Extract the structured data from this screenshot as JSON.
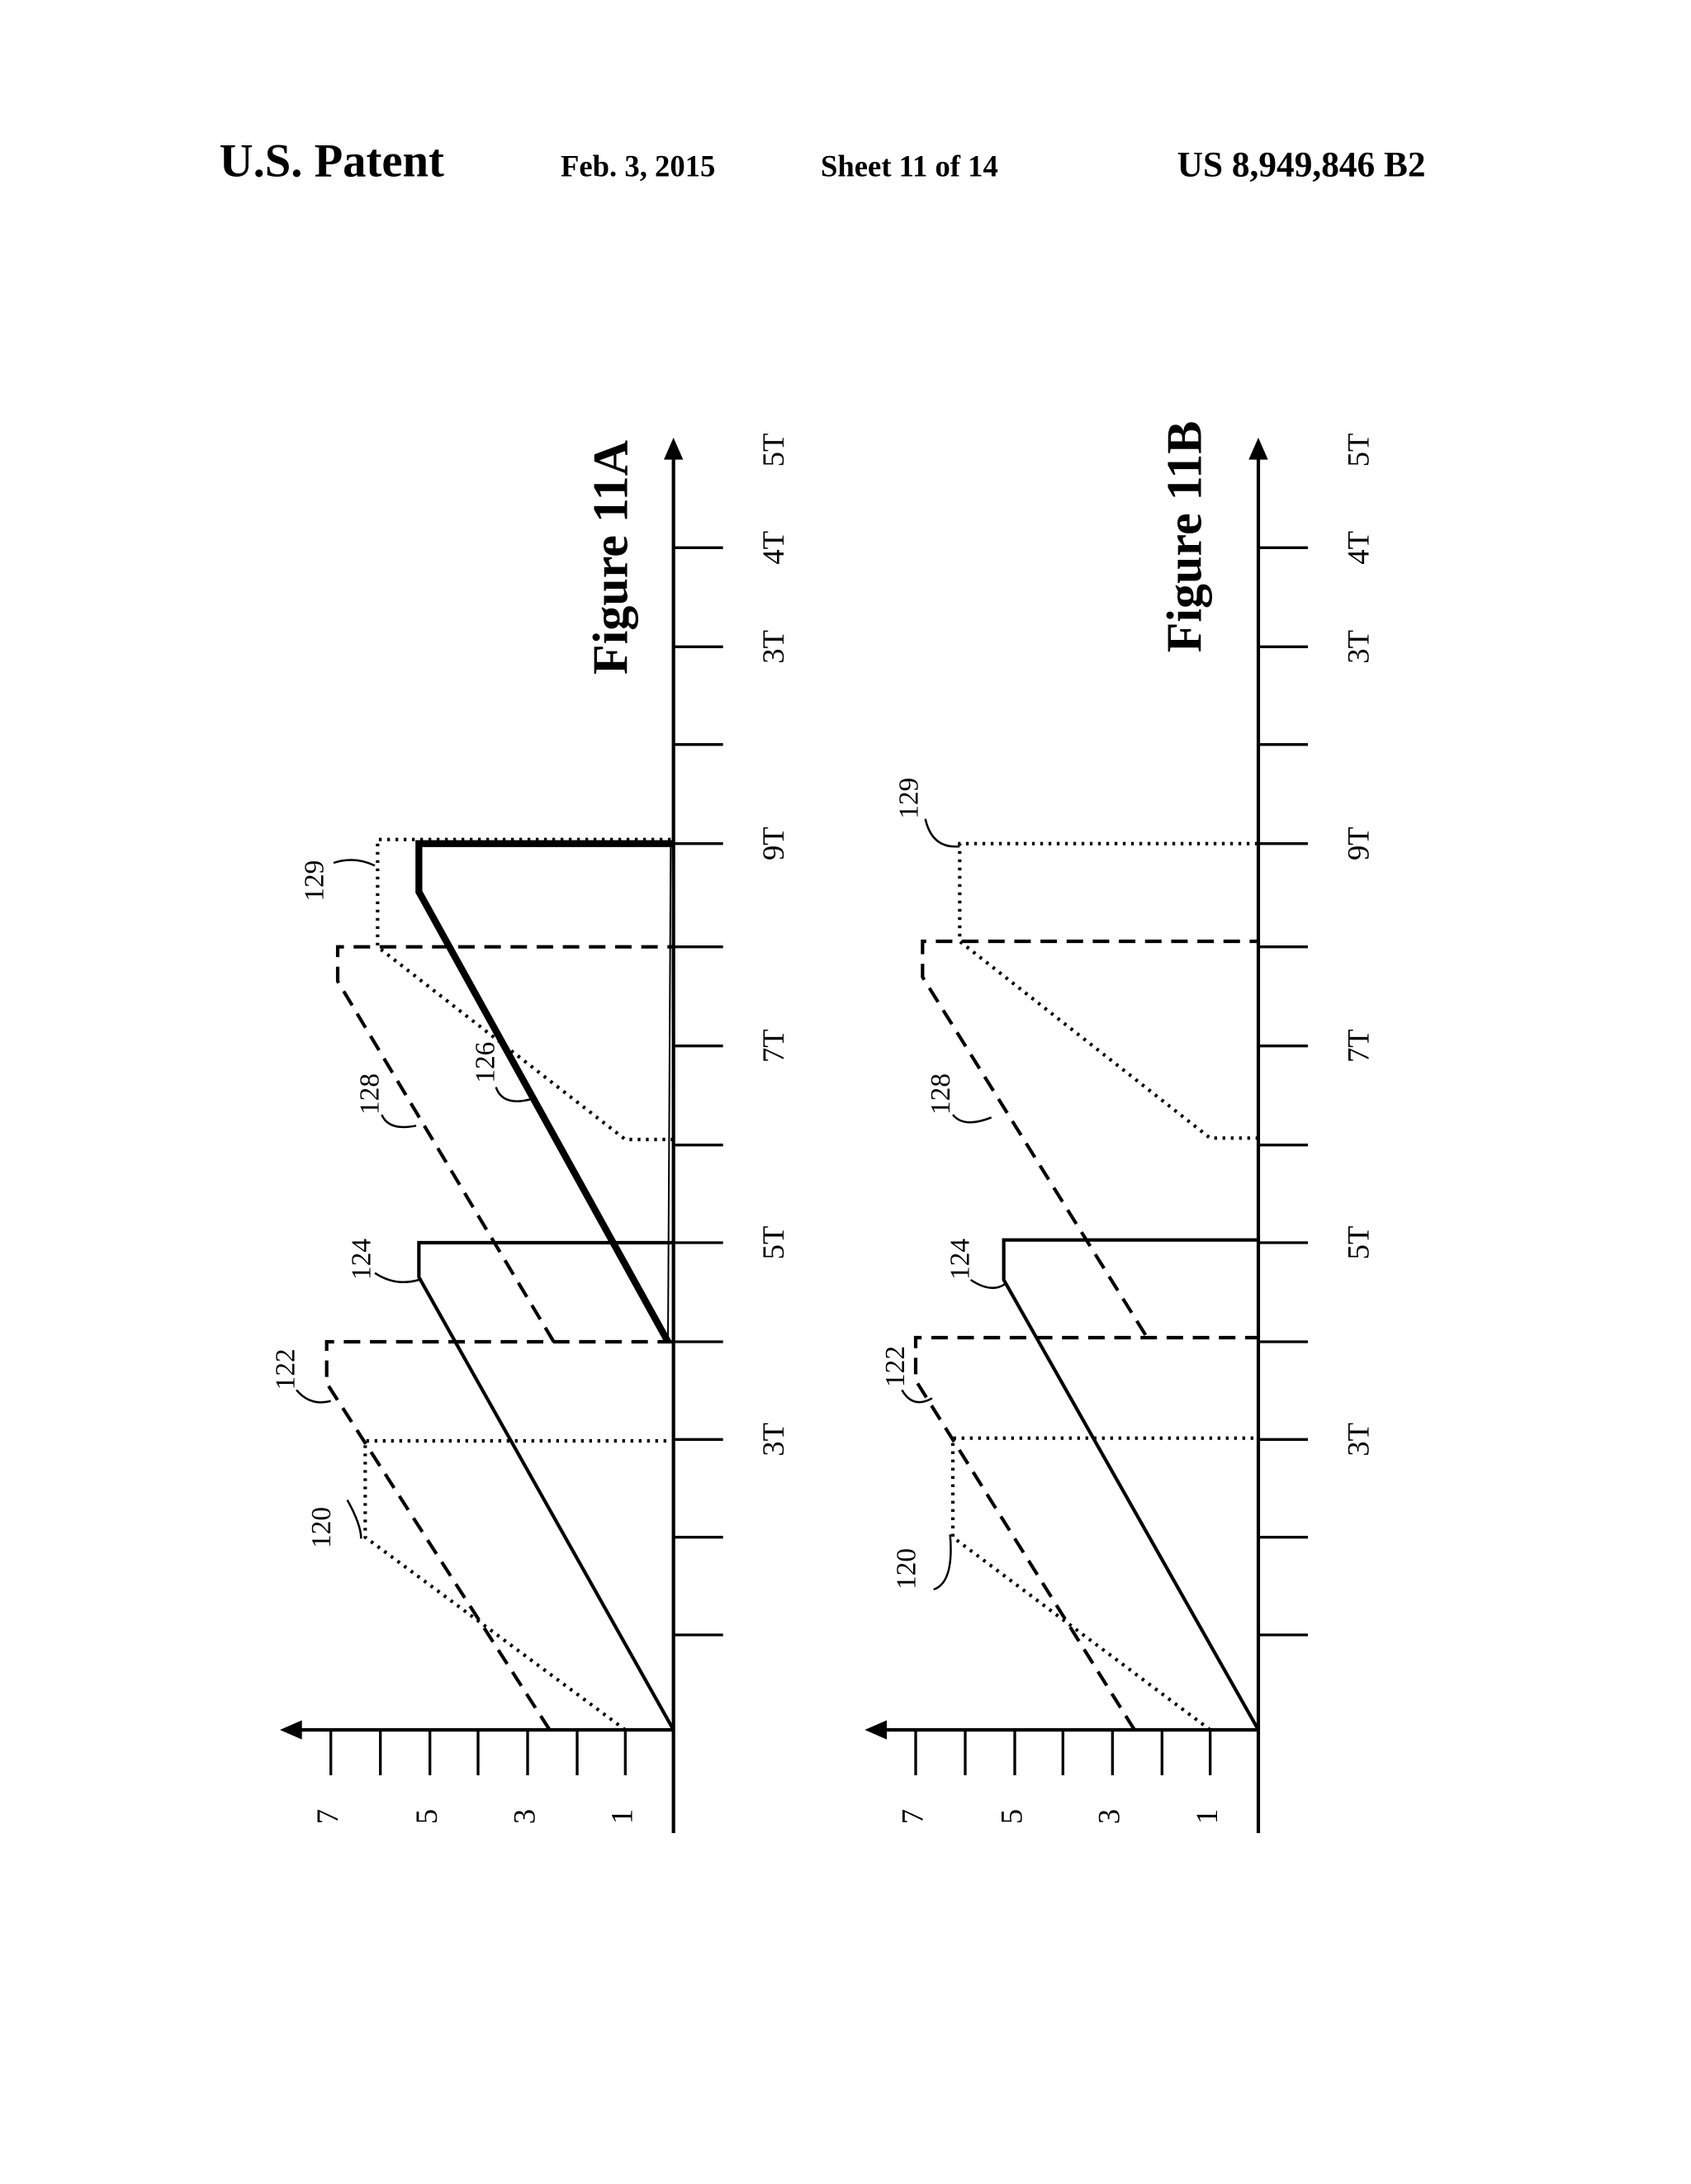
{
  "header": {
    "left": "U.S. Patent",
    "date": "Feb. 3, 2015",
    "sheet": "Sheet 11 of 14",
    "number": "US 8,949,846 B2"
  },
  "figures": [
    {
      "title": "Figure 11A",
      "x_tick_labels": [
        "3T",
        "5T",
        "7T",
        "9T",
        "3T",
        "4T",
        "5T"
      ],
      "y_tick_labels": [
        "1",
        "3",
        "5",
        "7"
      ],
      "references": [
        "120",
        "122",
        "124",
        "126",
        "128",
        "129"
      ]
    },
    {
      "title": "Figure 11B",
      "x_tick_labels": [
        "3T",
        "5T",
        "7T",
        "9T",
        "3T",
        "4T",
        "5T"
      ],
      "y_tick_labels": [
        "1",
        "3",
        "5",
        "7"
      ],
      "references": [
        "120",
        "122",
        "124",
        "128",
        "129"
      ]
    }
  ]
}
